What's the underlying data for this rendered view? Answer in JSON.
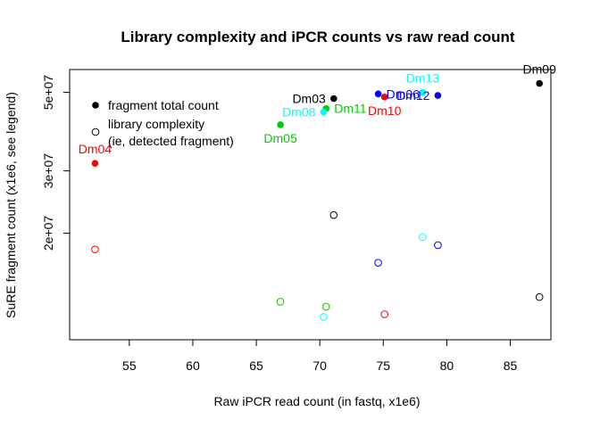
{
  "chart_data": {
    "type": "scatter",
    "title": "Library complexity and iPCR counts vs raw read count",
    "xlabel": "Raw iPCR read count (in fastq, x1e6)",
    "ylabel": "SuRE fragment count (x1e6, see legend)",
    "y_scale": "log",
    "xlim": [
      50.3,
      88.2
    ],
    "ylim": [
      10000000,
      58000000
    ],
    "x_ticks": [
      55,
      60,
      65,
      70,
      75,
      80,
      85
    ],
    "y_ticks": [
      {
        "value": 20000000,
        "label": "2e+07"
      },
      {
        "value": 30000000,
        "label": "3e+07"
      },
      {
        "value": 50000000,
        "label": "5e+07"
      }
    ],
    "legend": {
      "placement": "top-left",
      "entries": [
        {
          "label": "fragment total count",
          "marker": "filled"
        },
        {
          "label": "library complexity",
          "label2": "(ie, detected fragment)",
          "marker": "open"
        }
      ]
    },
    "series": [
      {
        "marker": "filled",
        "points": [
          {
            "label": "Dm09",
            "x": 87.3,
            "y": 53000000,
            "color": "#000000",
            "label_pos": "above"
          },
          {
            "label": "Dm03",
            "x": 71.1,
            "y": 48000000,
            "color": "#000000",
            "label_pos": "left"
          },
          {
            "label": "Dm06",
            "x": 74.6,
            "y": 49500000,
            "color": "#0000ff",
            "label_pos": "right"
          },
          {
            "label": "Dm12",
            "x": 79.3,
            "y": 49000000,
            "color": "#0000ff",
            "label_pos": "left"
          },
          {
            "label": "Dm13",
            "x": 78.1,
            "y": 50000000,
            "color": "#00ffff",
            "label_pos": "above"
          },
          {
            "label": "Dm10",
            "x": 75.1,
            "y": 48500000,
            "color": "#ff0000",
            "label_pos": "below"
          },
          {
            "label": "Dm11",
            "x": 70.5,
            "y": 45000000,
            "color": "#00cd00",
            "label_pos": "right"
          },
          {
            "label": "Dm08",
            "x": 70.3,
            "y": 44000000,
            "color": "#00ffff",
            "label_pos": "left"
          },
          {
            "label": "Dm05",
            "x": 66.9,
            "y": 40500000,
            "color": "#00cd00",
            "label_pos": "below"
          },
          {
            "label": "Dm04",
            "x": 52.3,
            "y": 31500000,
            "color": "#ff0000",
            "label_pos": "above"
          }
        ]
      },
      {
        "marker": "open",
        "points": [
          {
            "x": 71.1,
            "y": 22500000,
            "color": "#000000"
          },
          {
            "x": 78.1,
            "y": 19500000,
            "color": "#00ffff"
          },
          {
            "x": 79.3,
            "y": 18500000,
            "color": "#0000ff"
          },
          {
            "x": 52.3,
            "y": 18000000,
            "color": "#ff0000"
          },
          {
            "x": 74.6,
            "y": 16500000,
            "color": "#0000ff"
          },
          {
            "x": 87.3,
            "y": 13200000,
            "color": "#000000"
          },
          {
            "x": 66.9,
            "y": 12800000,
            "color": "#00cd00"
          },
          {
            "x": 70.5,
            "y": 12400000,
            "color": "#00cd00"
          },
          {
            "x": 75.1,
            "y": 11800000,
            "color": "#ff0000"
          },
          {
            "x": 70.3,
            "y": 11600000,
            "color": "#00ffff"
          }
        ]
      }
    ]
  }
}
